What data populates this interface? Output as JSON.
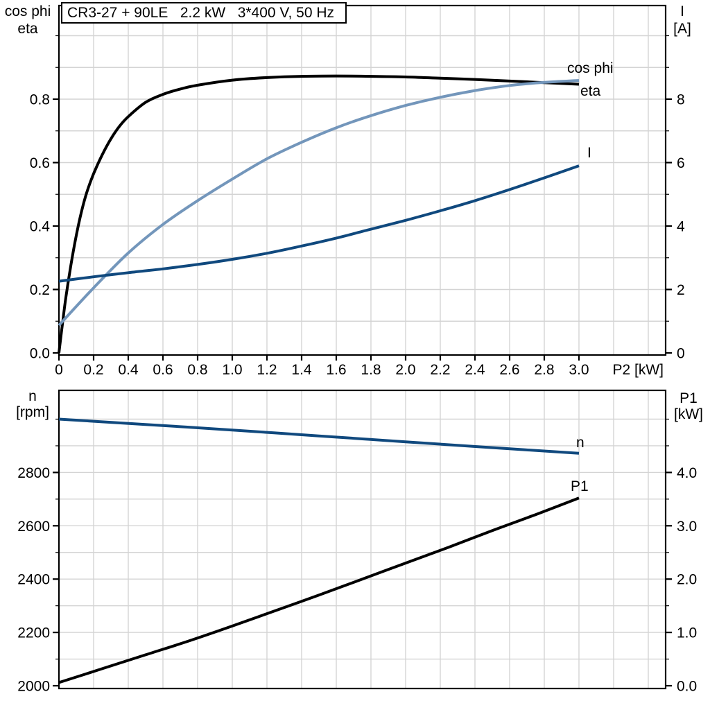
{
  "colors": {
    "black": "#000000",
    "dark_blue": "#10497E",
    "light_blue": "#7396BB",
    "grid": "#D4D4D4",
    "axis": "#000000",
    "background": "#FFFFFF"
  },
  "chart_data": [
    {
      "type": "line",
      "title": "CR3-27 + 90LE   2.2 kW   3*400 V, 50 Hz",
      "legend_position": "inline-labels",
      "grid": true,
      "x_axis": {
        "label": "P2 [kW]",
        "range": [
          0,
          3.5
        ],
        "tick_values": [
          0,
          0.2,
          0.4,
          0.6,
          0.8,
          1.0,
          1.2,
          1.4,
          1.6,
          1.8,
          2.0,
          2.2,
          2.4,
          2.6,
          2.8,
          3.0
        ],
        "tick_labels": [
          "0",
          "0.2",
          "0.4",
          "0.6",
          "0.8",
          "1.0",
          "1.2",
          "1.4",
          "1.6",
          "1.8",
          "2.0",
          "2.2",
          "2.4",
          "2.6",
          "2.8",
          "3.0"
        ],
        "grid_step": 0.2
      },
      "left_axis": {
        "title_lines": [
          "cos phi",
          "eta"
        ],
        "range": [
          0,
          1.095
        ],
        "minor_step": 0.1,
        "tick_values": [
          0,
          0.2,
          0.4,
          0.6,
          0.8
        ],
        "tick_labels": [
          "0.0",
          "0.2",
          "0.4",
          "0.6",
          "0.8"
        ]
      },
      "right_axis": {
        "title_lines": [
          "I",
          "[A]"
        ],
        "range": [
          0,
          10.95
        ],
        "minor_step": 1,
        "tick_values": [
          0,
          2,
          4,
          6,
          8
        ],
        "tick_labels": [
          "0",
          "2",
          "4",
          "6",
          "8"
        ]
      },
      "series": [
        {
          "name": "eta",
          "label": "eta",
          "axis": "left",
          "color": "black",
          "x": [
            0,
            0.02,
            0.04,
            0.07,
            0.1,
            0.13,
            0.16,
            0.2,
            0.25,
            0.3,
            0.35,
            0.4,
            0.5,
            0.6,
            0.7,
            0.8,
            1.0,
            1.2,
            1.4,
            1.6,
            1.8,
            2.0,
            2.2,
            2.4,
            2.6,
            2.8,
            3.0
          ],
          "y": [
            0,
            0.09,
            0.175,
            0.28,
            0.37,
            0.445,
            0.505,
            0.565,
            0.625,
            0.675,
            0.715,
            0.745,
            0.79,
            0.815,
            0.832,
            0.844,
            0.86,
            0.868,
            0.872,
            0.873,
            0.872,
            0.87,
            0.866,
            0.862,
            0.857,
            0.852,
            0.847
          ]
        },
        {
          "name": "cos_phi",
          "label": "cos phi",
          "axis": "left",
          "color": "light_blue",
          "x": [
            0,
            0.2,
            0.4,
            0.6,
            0.8,
            1.0,
            1.2,
            1.4,
            1.6,
            1.8,
            2.0,
            2.2,
            2.4,
            2.6,
            2.8,
            3.0
          ],
          "y": [
            0.087,
            0.205,
            0.315,
            0.405,
            0.48,
            0.548,
            0.612,
            0.664,
            0.71,
            0.748,
            0.78,
            0.806,
            0.827,
            0.843,
            0.853,
            0.859
          ]
        },
        {
          "name": "I",
          "label": "I",
          "axis": "right",
          "color": "dark_blue",
          "x": [
            0,
            0.2,
            0.4,
            0.6,
            0.8,
            1.0,
            1.2,
            1.4,
            1.6,
            1.8,
            2.0,
            2.2,
            2.4,
            2.6,
            2.8,
            3.0
          ],
          "y": [
            2.26,
            2.4,
            2.53,
            2.65,
            2.79,
            2.95,
            3.14,
            3.37,
            3.62,
            3.9,
            4.18,
            4.48,
            4.8,
            5.15,
            5.52,
            5.9
          ]
        }
      ]
    },
    {
      "type": "line",
      "title": "",
      "grid": true,
      "x_axis": {
        "label": "",
        "range": [
          0,
          3.5
        ],
        "tick_values": [],
        "tick_labels": [],
        "grid_step": 0.2
      },
      "left_axis": {
        "title_lines": [
          "n",
          "[rpm]"
        ],
        "range": [
          2000,
          3110
        ],
        "minor_step": 100,
        "tick_values": [
          2000,
          2200,
          2400,
          2600,
          2800
        ],
        "tick_labels": [
          "2000",
          "2200",
          "2400",
          "2600",
          "2800"
        ]
      },
      "right_axis": {
        "title_lines": [
          "P1",
          "[kW]"
        ],
        "range": [
          0,
          5.54
        ],
        "minor_step": 0.5,
        "tick_values": [
          0,
          1,
          2,
          3,
          4
        ],
        "tick_labels": [
          "0.0",
          "1.0",
          "2.0",
          "3.0",
          "4.0"
        ]
      },
      "series": [
        {
          "name": "n",
          "label": "n",
          "axis": "left",
          "color": "dark_blue",
          "x": [
            0,
            0.5,
            1.0,
            1.5,
            2.0,
            2.5,
            3.0
          ],
          "y": [
            3000,
            2980,
            2959,
            2937,
            2915,
            2893,
            2872
          ]
        },
        {
          "name": "P1",
          "label": "P1",
          "axis": "right",
          "color": "black",
          "x": [
            0,
            0.25,
            0.5,
            0.75,
            1.0,
            1.25,
            1.5,
            1.75,
            2.0,
            2.25,
            2.5,
            2.75,
            3.0
          ],
          "y": [
            0.06,
            0.32,
            0.58,
            0.84,
            1.12,
            1.41,
            1.7,
            2.0,
            2.3,
            2.6,
            2.91,
            3.21,
            3.52
          ]
        }
      ]
    }
  ]
}
